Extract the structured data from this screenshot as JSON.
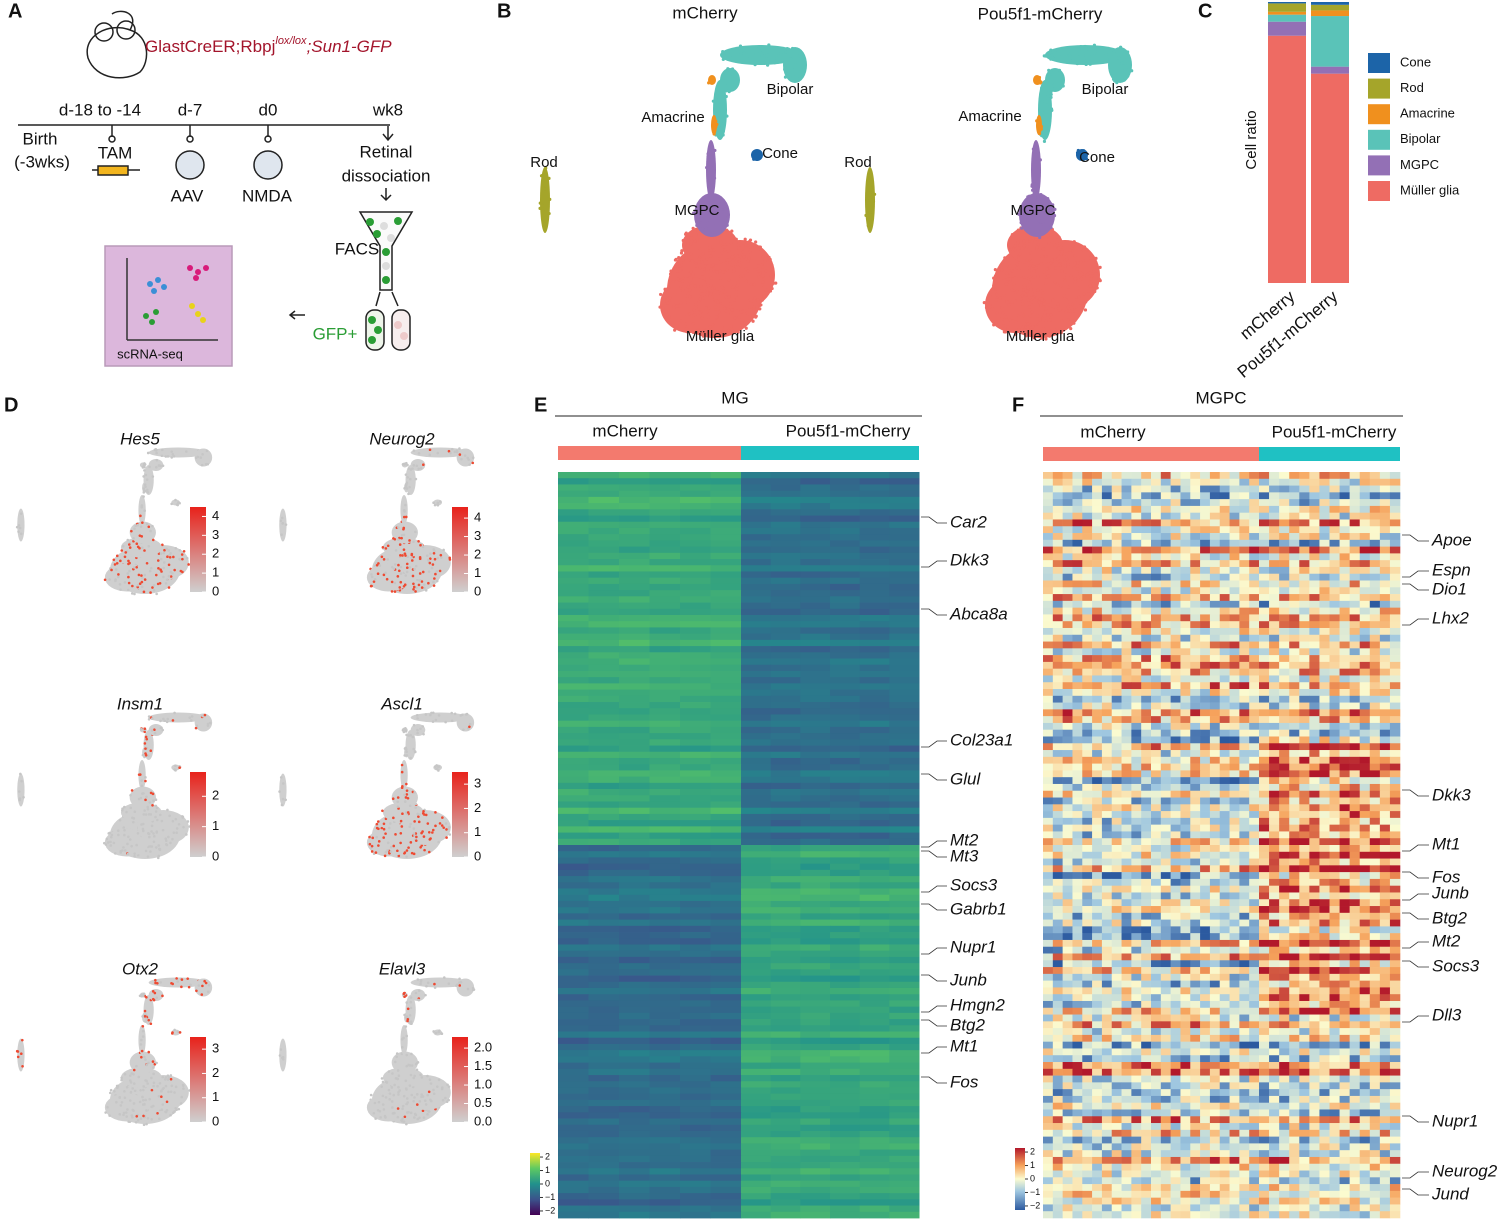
{
  "panel_labels": [
    "A",
    "B",
    "C",
    "D",
    "E",
    "F"
  ],
  "panel_a": {
    "genotype": {
      "prefix": "GlastCreER;Rbpj",
      "superscript": "lox/lox",
      "suffix": ";Sun1-GFP"
    },
    "timepoints": [
      "d-18 to -14",
      "d-7",
      "d0",
      "wk8"
    ],
    "birth": [
      "Birth",
      "(-3wks)"
    ],
    "treatments": [
      "TAM",
      "AAV",
      "NMDA"
    ],
    "dissociation": [
      "Retinal",
      "dissociation"
    ],
    "facs": "FACS",
    "gfp_positive": "GFP+",
    "scrna_seq": "scRNA-seq"
  },
  "panel_b": {
    "plots": [
      {
        "title": "mCherry",
        "clusters": [
          "Rod",
          "Amacrine",
          "Bipolar",
          "Cone",
          "MGPC",
          "Müller glia"
        ]
      },
      {
        "title": "Pou5f1-mCherry",
        "clusters": [
          "Rod",
          "Amacrine",
          "Bipolar",
          "Cone",
          "MGPC",
          "Müller glia"
        ]
      }
    ]
  },
  "chart_data": {
    "type": "bar",
    "stacked": true,
    "ylabel": "Cell ratio",
    "categories": [
      "mCherry",
      "Pou5f1-mCherry"
    ],
    "series": [
      {
        "name": "Cone",
        "color": "#1c64a8",
        "values": [
          0.005,
          0.01
        ]
      },
      {
        "name": "Rod",
        "color": "#a5a52a",
        "values": [
          0.03,
          0.02
        ]
      },
      {
        "name": "Amacrine",
        "color": "#f0901e",
        "values": [
          0.01,
          0.02
        ]
      },
      {
        "name": "Bipolar",
        "color": "#5ac3b8",
        "values": [
          0.025,
          0.18
        ]
      },
      {
        "name": "MGPC",
        "color": "#9370b5",
        "values": [
          0.05,
          0.025
        ]
      },
      {
        "name": "Müller glia",
        "color": "#ee6b63",
        "values": [
          0.88,
          0.745
        ]
      }
    ],
    "ylim": [
      0,
      1
    ],
    "legend": "right"
  },
  "panel_d": {
    "feature_plots": [
      {
        "gene": "Hes5",
        "colorbar_lim": [
          0,
          4.5
        ],
        "colorbar_ticks": [
          0,
          1,
          2,
          3,
          4
        ]
      },
      {
        "gene": "Neurog2",
        "colorbar_lim": [
          0,
          4.6
        ],
        "colorbar_ticks": [
          0,
          1,
          2,
          3,
          4
        ]
      },
      {
        "gene": "Insm1",
        "colorbar_lim": [
          0,
          2.8
        ],
        "colorbar_ticks": [
          0,
          1,
          2
        ]
      },
      {
        "gene": "Ascl1",
        "colorbar_lim": [
          0,
          3.5
        ],
        "colorbar_ticks": [
          0,
          1,
          2,
          3
        ]
      },
      {
        "gene": "Otx2",
        "colorbar_lim": [
          0,
          3.5
        ],
        "colorbar_ticks": [
          0,
          1,
          2,
          3
        ]
      },
      {
        "gene": "Elavl3",
        "colorbar_lim": [
          0,
          2.3
        ],
        "colorbar_ticks": [
          {
            "value": 0,
            "label": "0.0"
          },
          {
            "value": 0.5,
            "label": "0.5"
          },
          {
            "value": 1,
            "label": "1.0"
          },
          {
            "value": 1.5,
            "label": "1.5"
          },
          {
            "value": 2,
            "label": "2.0"
          }
        ]
      }
    ]
  },
  "heatmaps": [
    {
      "title": "MG",
      "groups": [
        "mCherry",
        "Pou5f1-mCherry"
      ],
      "genes": [
        "Car2",
        "Dkk3",
        "Abca8a",
        "Col23a1",
        "Glul",
        "Mt2",
        "Mt3",
        "Socs3",
        "Gabrb1",
        "Nupr1",
        "Junb",
        "Hmgn2",
        "Btg2",
        "Mt1",
        "Fos"
      ],
      "colorbar_lim": [
        -2.3,
        2.3
      ],
      "colorbar_ticks": [
        2,
        1,
        0,
        {
          "value": -1,
          "label": "−1"
        },
        {
          "value": -2,
          "label": "−2"
        }
      ]
    },
    {
      "title": "MGPC",
      "groups": [
        "mCherry",
        "Pou5f1-mCherry"
      ],
      "genes": [
        "Apoe",
        "Espn",
        "Dio1",
        "Lhx2",
        "Dkk3",
        "Mt1",
        "Fos",
        "Junb",
        "Btg2",
        "Mt2",
        "Socs3",
        "Dll3",
        "Nupr1",
        "Neurog2",
        "Jund"
      ],
      "colorbar_lim": [
        -2.3,
        2.3
      ],
      "colorbar_ticks": [
        2,
        1,
        0,
        {
          "value": -1,
          "label": "−1"
        },
        {
          "value": -2,
          "label": "−2"
        }
      ]
    }
  ]
}
